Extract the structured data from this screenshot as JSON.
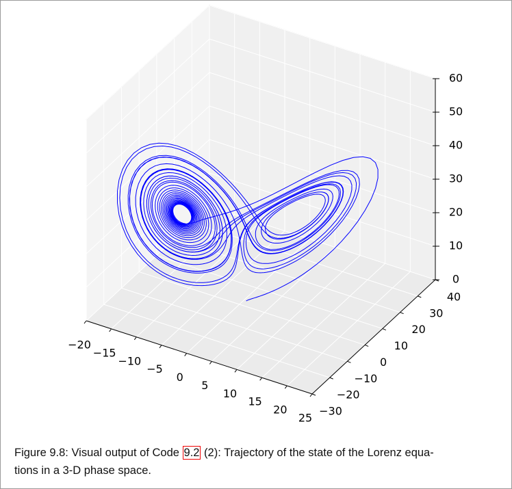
{
  "chart_data": {
    "type": "line3d",
    "color": "#0000ff",
    "xlim": [
      -20,
      25
    ],
    "xticks": [
      {
        "value": -20,
        "label": "−20"
      },
      {
        "value": -15,
        "label": "−15"
      },
      {
        "value": -10,
        "label": "−10"
      },
      {
        "value": -5,
        "label": "−5"
      },
      0,
      5,
      10,
      15,
      20,
      25
    ],
    "ylim": [
      -30,
      40
    ],
    "yticks": [
      {
        "value": -30,
        "label": "−30"
      },
      {
        "value": -20,
        "label": "−20"
      },
      {
        "value": -10,
        "label": "−10"
      },
      0,
      10,
      20,
      30,
      40
    ],
    "zlim": [
      0,
      60
    ],
    "zticks": [
      0,
      10,
      20,
      30,
      40,
      50,
      60
    ],
    "grid": true
  },
  "caption": {
    "before": "Figure 9.8: Visual output of Code ",
    "ref": "9.2",
    "after": " (2): Trajectory of the state of the Lorenz equa-",
    "line2": "tions in a 3-D phase space."
  }
}
